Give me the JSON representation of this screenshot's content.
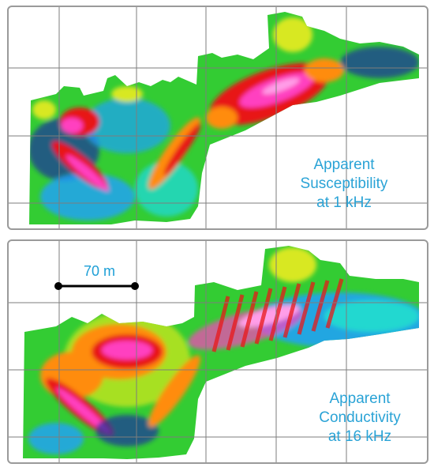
{
  "maps": [
    {
      "label_lines": [
        "Apparent",
        "Susceptibility",
        "at 1 kHz"
      ]
    },
    {
      "label_lines": [
        "Apparent",
        "Conductivity",
        "at 16 kHz"
      ],
      "scale_bar": {
        "label": "70 m"
      }
    }
  ],
  "colors": {
    "grid": "#7d7d7d",
    "label_text": "#2aa3d6",
    "scale_bar": "#000000",
    "colormap": [
      "#2030a0",
      "#1ea0ff",
      "#22d8d0",
      "#33cc33",
      "#d8e820",
      "#ff8c10",
      "#e81818",
      "#ff40c0",
      "#ff9ee8"
    ]
  }
}
